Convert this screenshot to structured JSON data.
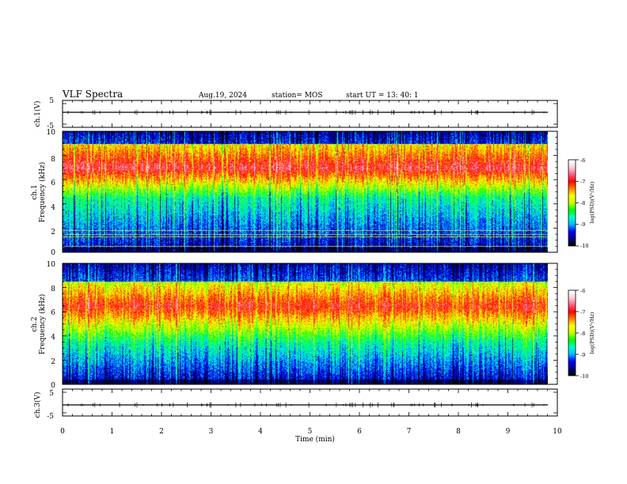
{
  "header": {
    "title": "VLF Spectra",
    "date": "Aug.19, 2024",
    "station": "station= MOS",
    "start": "start  UT =   13: 40: 1"
  },
  "colors": {
    "background": "#ffffff",
    "axis": "#000000",
    "colormap": [
      "#000000",
      "#00008b",
      "#0000ff",
      "#00bfff",
      "#00ffc8",
      "#00ff00",
      "#c8ff00",
      "#ffff00",
      "#ff8000",
      "#ff0000",
      "#ff6080",
      "#ffd0e0",
      "#ffffff"
    ]
  },
  "chart_data": [
    {
      "type": "line",
      "id": "ch1-voltage",
      "ylabel": "ch.1(V)",
      "ylim": [
        -5,
        5
      ],
      "yticks": [
        "5",
        "-5"
      ],
      "xlim": [
        0,
        10
      ],
      "description_level": 0
    },
    {
      "type": "heatmap",
      "id": "ch1-spectrogram",
      "ylabel": "ch.1\nFrequency (kHz)",
      "ylabel_line1": "ch.1",
      "ylabel_line2": "Frequency (kHz)",
      "ylim": [
        0,
        10
      ],
      "yticks": [
        "0",
        "2",
        "4",
        "6",
        "8",
        "10"
      ],
      "xlim": [
        0,
        9.83
      ],
      "colorbar": {
        "label": "log(PSD)(V²/Hz)",
        "range": [
          -10,
          -6
        ],
        "ticks": [
          "-6",
          "-7",
          "-8",
          "-9",
          "-10"
        ]
      },
      "band_profile": {
        "quiet_below_khz": 4.5,
        "peak_khz": 7.0,
        "top_edge_khz": 9.0,
        "peak_log_psd": -6.8
      },
      "hlines_khz": [
        0.5,
        1.3,
        1.5,
        1.8
      ]
    },
    {
      "type": "heatmap",
      "id": "ch2-spectrogram",
      "ylabel": "ch.2\nFrequency (kHz)",
      "ylabel_line1": "ch.2",
      "ylabel_line2": "Frequency (kHz)",
      "ylim": [
        0,
        10
      ],
      "yticks": [
        "0",
        "2",
        "4",
        "6",
        "8",
        "10"
      ],
      "xlim": [
        0,
        9.83
      ],
      "colorbar": {
        "label": "log(PSD)(V²/Hz)",
        "range": [
          -10,
          -6
        ],
        "ticks": [
          "-6",
          "-7",
          "-8",
          "-9",
          "-10"
        ]
      },
      "band_profile": {
        "quiet_below_khz": 3.5,
        "peak_khz": 6.5,
        "top_edge_khz": 8.5,
        "peak_log_psd": -7.0
      }
    },
    {
      "type": "line",
      "id": "ch3-voltage",
      "ylabel": "ch.3(V)",
      "ylim": [
        -5,
        5
      ],
      "yticks": [
        "5",
        "-5"
      ],
      "xlim": [
        0,
        10
      ],
      "description_level": 0
    }
  ],
  "xaxis": {
    "label": "Time  (min)",
    "ticks": [
      "0",
      "1",
      "2",
      "3",
      "4",
      "5",
      "6",
      "7",
      "8",
      "9",
      "10"
    ],
    "range": [
      0,
      10
    ]
  }
}
